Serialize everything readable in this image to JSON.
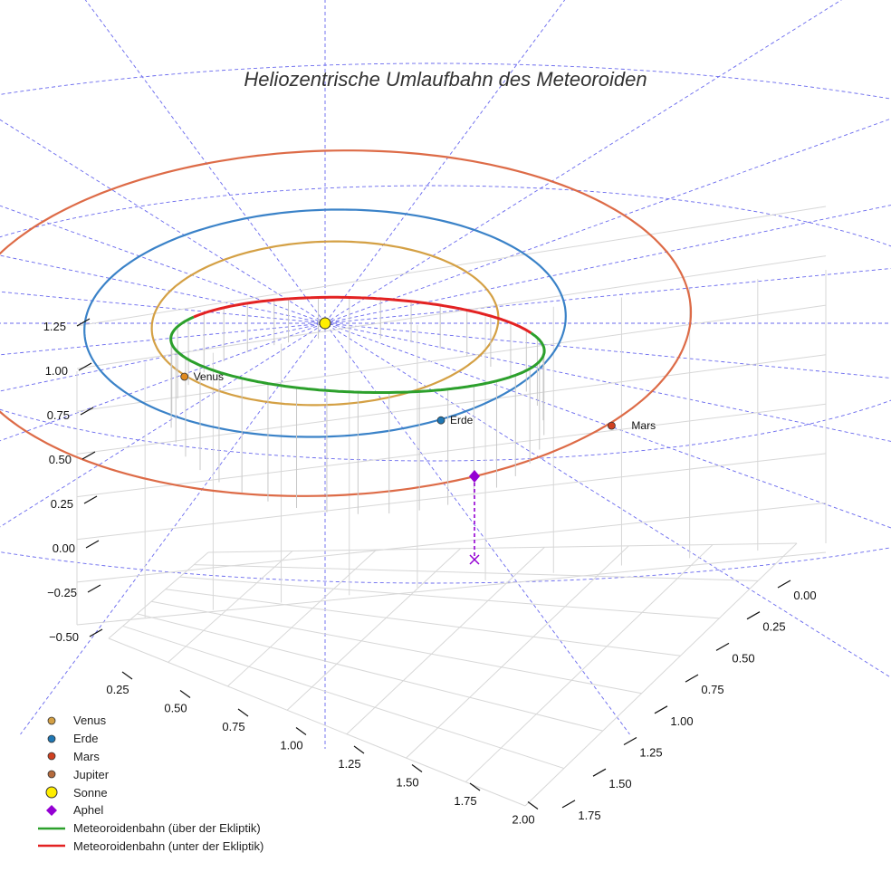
{
  "chart_data": {
    "type": "line",
    "projection": "3d",
    "title": "Heliozentrische Umlaufbahn des Meteoroiden",
    "axes": {
      "z_ticks": [
        "1.25",
        "1.00",
        "0.75",
        "0.50",
        "0.25",
        "0.00",
        "−0.25",
        "−0.50"
      ],
      "x_ticks": [
        "0.25",
        "0.50",
        "0.75",
        "1.00",
        "1.25",
        "1.50",
        "1.75",
        "2.00"
      ],
      "y_ticks": [
        "0.00",
        "0.25",
        "0.50",
        "0.75",
        "1.00",
        "1.25",
        "1.50",
        "1.75"
      ],
      "grid": true
    },
    "planet_orbits": [
      {
        "name": "Venus",
        "radius_au": 0.72,
        "color": "#d4a044"
      },
      {
        "name": "Erde",
        "radius_au": 1.0,
        "color": "#3a82c8"
      },
      {
        "name": "Mars",
        "radius_au": 1.52,
        "color": "#dd6b47"
      }
    ],
    "planets": [
      {
        "name": "Venus",
        "label": "Venus",
        "color": "#e08a1e",
        "x": -0.5,
        "y": 0.52,
        "z": 0
      },
      {
        "name": "Erde",
        "label": "Erde",
        "color": "#1f77b4",
        "x": 0.6,
        "y": 0.8,
        "z": 0
      },
      {
        "name": "Mars",
        "label": "Mars",
        "color": "#d04020",
        "x": 1.3,
        "y": 0.78,
        "z": 0
      }
    ],
    "sun": {
      "name": "Sonne",
      "x": 0,
      "y": 0,
      "z": 0,
      "color": "#ffee00"
    },
    "aphel": {
      "name": "Aphel",
      "x": 1.35,
      "y": 1.05,
      "z": 0.8,
      "color": "#9400d3"
    },
    "meteoroid_orbit": {
      "semi_major_axis_au": 0.85,
      "eccentricity": 0.47,
      "inclination_deg": 22,
      "above_color": "#2ca02c",
      "below_color": "#e32222"
    },
    "legend": [
      {
        "label": "Venus",
        "symbol": "circle",
        "color": "#d4a044"
      },
      {
        "label": "Erde",
        "symbol": "circle",
        "color": "#1f77b4"
      },
      {
        "label": "Mars",
        "symbol": "circle",
        "color": "#d04020"
      },
      {
        "label": "Jupiter",
        "symbol": "circle",
        "color": "#b46a3c"
      },
      {
        "label": "Sonne",
        "symbol": "circle-large",
        "color": "#ffee00"
      },
      {
        "label": "Aphel",
        "symbol": "diamond",
        "color": "#9400d3"
      },
      {
        "label": "Meteoroidenbahn (über der Ekliptik)",
        "symbol": "line",
        "color": "#2ca02c"
      },
      {
        "label": "Meteoroidenbahn (unter der Ekliptik)",
        "symbol": "line",
        "color": "#e32222"
      }
    ]
  }
}
